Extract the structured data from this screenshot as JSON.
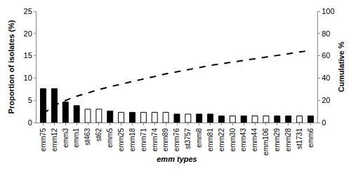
{
  "chart_data": {
    "type": "bar",
    "x_label": "emm types",
    "y_label": "Proportion of isolates (%)",
    "y2_label": "Cumulative %",
    "categories": [
      "emm75",
      "emm12",
      "emm3",
      "emm1",
      "st463",
      "st62",
      "emm5",
      "emm25",
      "emm18",
      "emm71",
      "emm74",
      "emm89",
      "emm76",
      "st3757",
      "emm8",
      "emm81",
      "emm22",
      "emm30",
      "emm43",
      "emm44",
      "emm106",
      "emm29",
      "emm28",
      "st1731",
      "emm6"
    ],
    "series": [
      {
        "type": "bar",
        "colors": [
          "#000000",
          "#000000",
          "#000000",
          "#000000",
          "#ffffff",
          "#ffffff",
          "#000000",
          "#ffffff",
          "#000000",
          "#ffffff",
          "#ffffff",
          "#ffffff",
          "#000000",
          "#ffffff",
          "#000000",
          "#000000",
          "#000000",
          "#ffffff",
          "#000000",
          "#ffffff",
          "#ffffff",
          "#000000",
          "#000000",
          "#ffffff",
          "#000000"
        ],
        "values": [
          7.6,
          7.6,
          4.6,
          3.8,
          3.0,
          3.0,
          2.6,
          2.3,
          2.3,
          2.3,
          2.3,
          2.3,
          1.9,
          1.9,
          1.9,
          1.9,
          1.5,
          1.5,
          1.5,
          1.5,
          1.5,
          1.5,
          1.5,
          1.5,
          1.5
        ]
      },
      {
        "type": "line",
        "axis": "y2",
        "color": "#000000",
        "line_style": "dash",
        "values": [
          7.6,
          15.2,
          19.8,
          23.6,
          26.6,
          29.6,
          32.2,
          34.5,
          36.8,
          39.1,
          41.4,
          43.7,
          45.6,
          47.5,
          49.4,
          51.3,
          52.8,
          54.3,
          55.8,
          57.3,
          58.8,
          60.3,
          61.8,
          63.3,
          64.8
        ]
      }
    ],
    "ylim": [
      0,
      25
    ],
    "yticks": [
      0,
      5,
      10,
      15,
      20,
      25
    ],
    "y2lim": [
      0,
      100
    ],
    "y2ticks": [
      0,
      20,
      40,
      60,
      80,
      100
    ],
    "grid": false
  }
}
